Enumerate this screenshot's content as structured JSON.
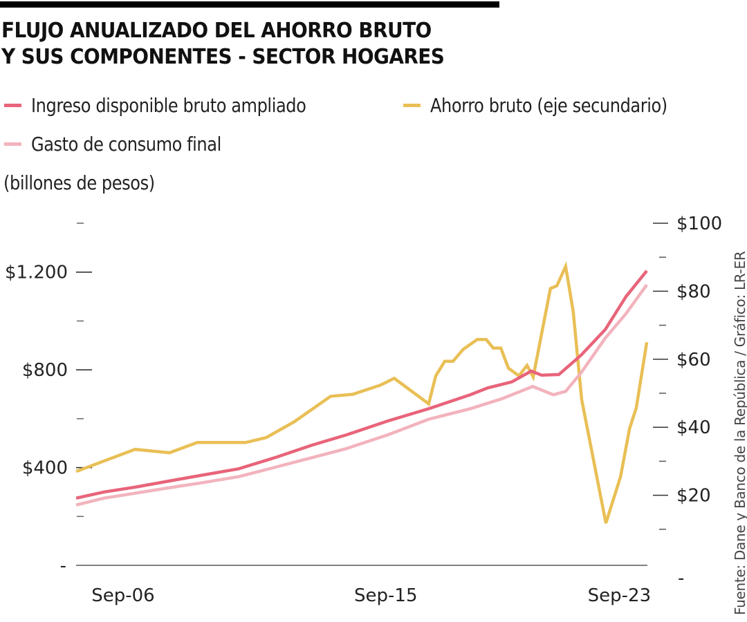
{
  "header": {
    "title_line1": "FLUJO ANUALIZADO DEL AHORRO BRUTO",
    "title_line2": "Y SUS COMPONENTES - SECTOR HOGARES"
  },
  "legend": [
    {
      "label": "Ingreso disponible bruto ampliado",
      "color": "#e8647a"
    },
    {
      "label": "Ahorro bruto (eje secundario)",
      "color": "#e9bf55"
    },
    {
      "label": "Gasto de consumo final",
      "color": "#f2b3bd"
    }
  ],
  "unit_label": "(billones de pesos)",
  "source": "Fuente: Dane y Banco de la República / Gráfico: LR-ER",
  "chart_data": {
    "type": "line",
    "title": "FLUJO ANUALIZADO DEL AHORRO BRUTO Y SUS COMPONENTES - SECTOR HOGARES",
    "ylabel": "(billones de pesos)",
    "y_primary": {
      "range": [
        0,
        1400
      ],
      "major_ticks": [
        0,
        400,
        800,
        1200
      ],
      "minor_ticks": [
        200,
        600,
        1000,
        1400
      ],
      "tick_labels": [
        "-",
        "$400",
        "$800",
        "$1.200"
      ]
    },
    "y_secondary": {
      "range": [
        0,
        100
      ],
      "major_ticks": [
        0,
        20,
        40,
        60,
        80,
        100
      ],
      "minor_ticks": [
        10,
        30,
        50,
        70,
        90
      ],
      "tick_labels": [
        "-",
        "$20",
        "$40",
        "$60",
        "$80",
        "$100"
      ]
    },
    "x_axis": {
      "range": [
        2005.1,
        2024.6
      ],
      "ticks": [
        2006.75,
        2015.75,
        2023.75
      ],
      "tick_labels": [
        "Sep-06",
        "Sep-15",
        "Sep-23"
      ]
    },
    "grid": false,
    "legend_position": "top",
    "series": [
      {
        "name": "Ingreso disponible bruto ampliado",
        "axis": "primary",
        "color": "#e8647a",
        "x": [
          2005.14,
          2006.09,
          2007.16,
          2008.46,
          2009.41,
          2010.71,
          2012.01,
          2013.2,
          2014.38,
          2015.8,
          2017.22,
          2018.64,
          2019.24,
          2020.07,
          2020.73,
          2021.09,
          2021.68,
          2022.44,
          2023.27,
          2023.98,
          2024.69
        ],
        "values": [
          275,
          300,
          320,
          348,
          368,
          395,
          443,
          491,
          533,
          590,
          641,
          698,
          726,
          751,
          795,
          778,
          781,
          860,
          965,
          1100,
          1205
        ]
      },
      {
        "name": "Gasto de consumo final",
        "axis": "primary",
        "color": "#f2b3bd",
        "x": [
          2005.14,
          2006.09,
          2007.16,
          2008.46,
          2009.41,
          2010.71,
          2012.01,
          2013.2,
          2014.38,
          2015.8,
          2017.22,
          2018.64,
          2019.71,
          2020.78,
          2021.49,
          2021.91,
          2022.44,
          2023.27,
          2023.98,
          2024.69
        ],
        "values": [
          247,
          275,
          295,
          320,
          337,
          363,
          403,
          440,
          477,
          533,
          598,
          641,
          681,
          732,
          698,
          712,
          788,
          930,
          1030,
          1148
        ]
      },
      {
        "name": "Ahorro bruto (eje secundario)",
        "axis": "secondary",
        "color": "#e9bf55",
        "x": [
          2005.14,
          2007.16,
          2008.34,
          2009.29,
          2010.95,
          2011.66,
          2012.61,
          2013.86,
          2014.62,
          2015.57,
          2016.04,
          2017.22,
          2017.46,
          2017.77,
          2018.05,
          2018.4,
          2018.88,
          2019.19,
          2019.43,
          2019.69,
          2019.95,
          2020.31,
          2020.59,
          2020.8,
          2021.39,
          2021.61,
          2021.91,
          2022.17,
          2022.46,
          2023.29,
          2023.79,
          2024.1,
          2024.33,
          2024.69
        ],
        "values": [
          27,
          33.5,
          32.5,
          35.5,
          35.5,
          37,
          41.6,
          49.1,
          49.7,
          52.4,
          54.4,
          46.9,
          55.1,
          59.4,
          59.4,
          62.9,
          65.8,
          65.8,
          63.3,
          63.3,
          57.4,
          55.1,
          58.2,
          54.8,
          80.8,
          81.6,
          87.3,
          74.1,
          48.1,
          11.8,
          25.4,
          39.6,
          45.7,
          65
        ]
      }
    ]
  }
}
